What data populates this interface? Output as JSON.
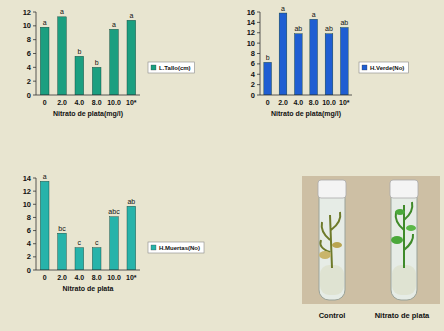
{
  "chart_data": [
    {
      "type": "bar",
      "x_label": "Nitrato de plata(mg/l)",
      "categories": [
        "0",
        "2.0",
        "4.0",
        "8.0",
        "10.0",
        "10*"
      ],
      "series": [
        {
          "name": "L.Tallo(cm)",
          "color": "#1b9f80",
          "values": [
            9.8,
            11.3,
            5.6,
            4.0,
            9.5,
            10.8
          ]
        }
      ],
      "annotations": [
        "a",
        "a",
        "b",
        "b",
        "a",
        "a"
      ],
      "ylim": [
        0,
        12
      ],
      "yticks": [
        0,
        2,
        4,
        6,
        8,
        10,
        12
      ],
      "grid": false,
      "legend": "right"
    },
    {
      "type": "bar",
      "x_label": "Nitrato de plata(mg/l)",
      "categories": [
        "0",
        "2.0",
        "4.0",
        "8.0",
        "10.0",
        "10*"
      ],
      "series": [
        {
          "name": "H.Verde(No)",
          "color": "#1f5ed2",
          "values": [
            6.3,
            15.8,
            11.8,
            14.6,
            11.8,
            13.0
          ]
        }
      ],
      "annotations": [
        "b",
        "a",
        "ab",
        "a",
        "ab",
        "ab"
      ],
      "ylim": [
        0,
        16
      ],
      "yticks": [
        0,
        2,
        4,
        6,
        8,
        10,
        12,
        14,
        16
      ],
      "grid": false,
      "legend": "right"
    },
    {
      "type": "bar",
      "x_label": "Nitrato de plata",
      "categories": [
        "0",
        "2.0",
        "4.0",
        "8.0",
        "10.0",
        "10*"
      ],
      "series": [
        {
          "name": "H.Muertas(No)",
          "color": "#27b3aa",
          "values": [
            13.5,
            5.6,
            3.4,
            3.4,
            8.1,
            9.7
          ]
        }
      ],
      "annotations": [
        "a",
        "bc",
        "c",
        "c",
        "abc",
        "ab"
      ],
      "ylim": [
        0,
        14
      ],
      "yticks": [
        0,
        2,
        4,
        6,
        8,
        10,
        12,
        14
      ],
      "grid": false,
      "legend": "right"
    }
  ],
  "photo": {
    "labels": [
      "Control",
      "Nitrato de plata"
    ]
  }
}
